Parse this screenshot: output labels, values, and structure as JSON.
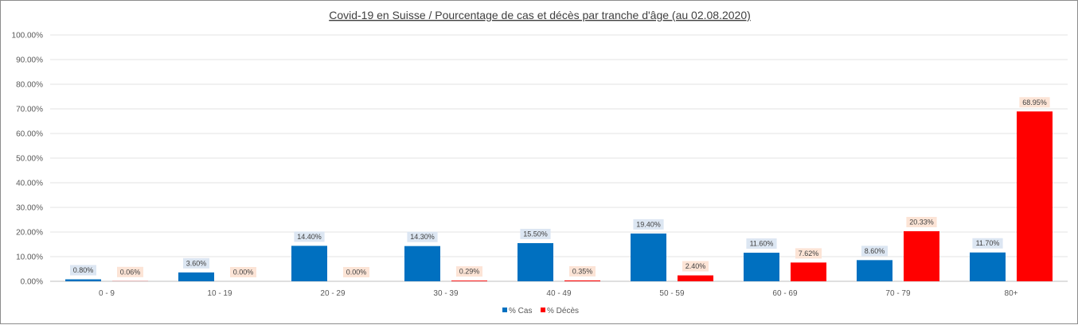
{
  "chart_data": {
    "type": "bar",
    "title": "Covid-19 en Suisse / Pourcentage de cas et décès par tranche d'âge (au 02.08.2020)",
    "xlabel": "",
    "ylabel": "",
    "ylim": [
      0,
      100
    ],
    "y_ticks": [
      "0.00%",
      "10.00%",
      "20.00%",
      "30.00%",
      "40.00%",
      "50.00%",
      "60.00%",
      "70.00%",
      "80.00%",
      "90.00%",
      "100.00%"
    ],
    "grid": true,
    "legend_position": "bottom",
    "categories": [
      "0 - 9",
      "10 - 19",
      "20 - 29",
      "30 - 39",
      "40 - 49",
      "50 - 59",
      "60 - 69",
      "70 - 79",
      "80+"
    ],
    "series": [
      {
        "name": "% Cas",
        "color": "#0070c0",
        "label_bg": "#dce6f2",
        "values": [
          0.8,
          3.6,
          14.4,
          14.3,
          15.5,
          19.4,
          11.6,
          8.6,
          11.7
        ],
        "labels": [
          "0.80%",
          "3.60%",
          "14.40%",
          "14.30%",
          "15.50%",
          "19.40%",
          "11.60%",
          "8.60%",
          "11.70%"
        ]
      },
      {
        "name": "% Décès",
        "color": "#ff0000",
        "label_bg": "#fce4d6",
        "values": [
          0.06,
          0.0,
          0.0,
          0.29,
          0.35,
          2.4,
          7.62,
          20.33,
          68.95
        ],
        "labels": [
          "0.06%",
          "0.00%",
          "0.00%",
          "0.29%",
          "0.35%",
          "2.40%",
          "7.62%",
          "20.33%",
          "68.95%"
        ]
      }
    ]
  }
}
